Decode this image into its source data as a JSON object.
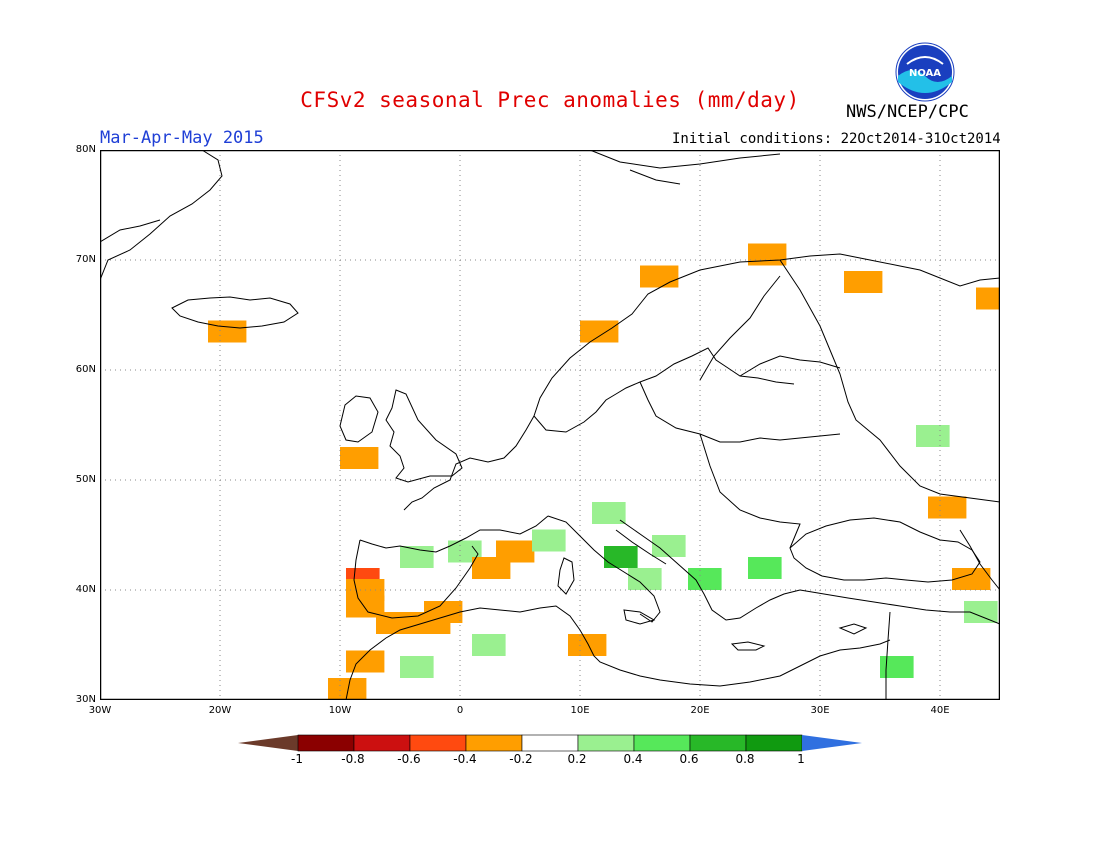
{
  "title": "CFSv2 seasonal Prec anomalies (mm/day)",
  "period": "Mar-Apr-May 2015",
  "organization": "NWS/NCEP/CPC",
  "initial_conditions": "Initial conditions: 22Oct2014-31Oct2014",
  "logo_text": "NOAA",
  "map": {
    "lon_range": [
      -30,
      45
    ],
    "lat_range": [
      30,
      80
    ],
    "lat_labels": [
      "30N",
      "40N",
      "50N",
      "60N",
      "70N",
      "80N"
    ],
    "lon_labels": [
      "30W",
      "20W",
      "10W",
      "0",
      "10E",
      "20E",
      "30E",
      "40E"
    ],
    "gridlines": true
  },
  "colorbar": {
    "labels": [
      "-1",
      "-0.8",
      "-0.6",
      "-0.4",
      "-0.2",
      "0.2",
      "0.4",
      "0.6",
      "0.8",
      "1"
    ],
    "colors": [
      "#8b0000",
      "#cc1010",
      "#ff4a10",
      "#ff9e00",
      "#ffffff",
      "#9af090",
      "#56e85a",
      "#28b828",
      "#109a10"
    ],
    "low_color": "#6b3a2a",
    "high_color": "#3070e0"
  },
  "anomaly_cells": [
    {
      "lon": -20,
      "lat": 63.5,
      "value": -0.3
    },
    {
      "lon": -9,
      "lat": 52,
      "value": -0.3
    },
    {
      "lon": -8.5,
      "lat": 41,
      "value": -0.6
    },
    {
      "lon": -8.5,
      "lat": 40,
      "value": -0.3
    },
    {
      "lon": -8.5,
      "lat": 38.5,
      "value": -0.3
    },
    {
      "lon": -6,
      "lat": 37,
      "value": -0.3
    },
    {
      "lon": -3,
      "lat": 37,
      "value": -0.3
    },
    {
      "lon": -2,
      "lat": 38,
      "value": -0.3
    },
    {
      "lon": -10,
      "lat": 31,
      "value": -0.3
    },
    {
      "lon": -8.5,
      "lat": 33.5,
      "value": -0.3
    },
    {
      "lon": -4,
      "lat": 43,
      "value": 0.3
    },
    {
      "lon": 0,
      "lat": 43.5,
      "value": 0.3
    },
    {
      "lon": 4,
      "lat": 43.5,
      "value": -0.3
    },
    {
      "lon": 2,
      "lat": 42,
      "value": -0.3
    },
    {
      "lon": 7,
      "lat": 44.5,
      "value": 0.3
    },
    {
      "lon": 12,
      "lat": 47,
      "value": 0.3
    },
    {
      "lon": 13,
      "lat": 43,
      "value": 0.7
    },
    {
      "lon": 15,
      "lat": 41,
      "value": 0.3
    },
    {
      "lon": 17,
      "lat": 44,
      "value": 0.3
    },
    {
      "lon": 20,
      "lat": 41,
      "value": 0.5
    },
    {
      "lon": 25,
      "lat": 42,
      "value": 0.4
    },
    {
      "lon": 10,
      "lat": 35,
      "value": -0.3
    },
    {
      "lon": 2,
      "lat": 35,
      "value": 0.3
    },
    {
      "lon": -4,
      "lat": 33,
      "value": 0.3
    },
    {
      "lon": 40,
      "lat": 47.5,
      "value": -0.3
    },
    {
      "lon": 42,
      "lat": 41,
      "value": -0.3
    },
    {
      "lon": 43,
      "lat": 38,
      "value": 0.3
    },
    {
      "lon": 36,
      "lat": 33,
      "value": 0.4
    },
    {
      "lon": 25,
      "lat": 70.5,
      "value": -0.3
    },
    {
      "lon": 33,
      "lat": 68,
      "value": -0.3
    },
    {
      "lon": 16,
      "lat": 68.5,
      "value": -0.3
    },
    {
      "lon": 11,
      "lat": 63.5,
      "value": -0.3
    },
    {
      "lon": 44,
      "lat": 66.5,
      "value": -0.3
    },
    {
      "lon": 39,
      "lat": 54,
      "value": 0.3
    }
  ]
}
